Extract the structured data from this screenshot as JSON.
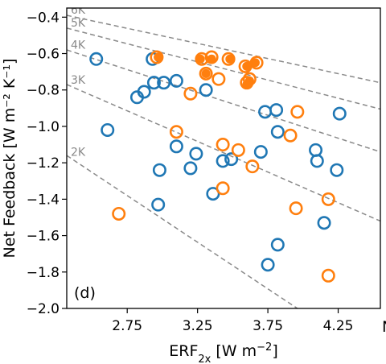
{
  "chart_data": {
    "type": "scatter",
    "panel_label": "(d)",
    "xlabel": "ERF",
    "xlabel_sub": "2x",
    "xlabel_unit": " [W m",
    "xlabel_unit_sup": "−2",
    "xlabel_unit_end": "]",
    "ylabel": "Net Feedback [W m⁻² K⁻¹]",
    "xlim": [
      2.32,
      4.55
    ],
    "ylim": [
      -2.0,
      -0.35
    ],
    "x_ticks": [
      2.75,
      3.25,
      3.75,
      4.25
    ],
    "x_tick_labels": [
      "2.75",
      "3.25",
      "3.75",
      "4.25"
    ],
    "y_ticks": [
      -2.0,
      -1.8,
      -1.6,
      -1.4,
      -1.2,
      -1.0,
      -0.8,
      -0.6,
      -0.4
    ],
    "y_tick_labels": [
      "−2.0",
      "−1.8",
      "−1.6",
      "−1.4",
      "−1.2",
      "−1.0",
      "−0.8",
      "−0.6",
      "−0.4"
    ],
    "edge_text": "N",
    "colors": {
      "blue": "#1f77b4",
      "orange": "#ff7f0e",
      "iso": "#8a8a8a"
    },
    "iso_lines": [
      {
        "label": "6K",
        "x": [
          2.32,
          4.55
        ],
        "y": [
          -0.39,
          -0.76
        ]
      },
      {
        "label": "5K",
        "x": [
          2.32,
          4.55
        ],
        "y": [
          -0.46,
          -0.905
        ]
      },
      {
        "label": "4K",
        "x": [
          2.32,
          4.55
        ],
        "y": [
          -0.58,
          -1.14
        ]
      },
      {
        "label": "3K",
        "x": [
          2.32,
          4.55
        ],
        "y": [
          -0.77,
          -1.52
        ]
      },
      {
        "label": "2K",
        "x": [
          2.32,
          3.96
        ],
        "y": [
          -1.16,
          -2.0
        ]
      }
    ],
    "series": [
      {
        "color": "blue",
        "filled": false,
        "points": [
          [
            2.53,
            -0.63
          ],
          [
            2.93,
            -0.63
          ],
          [
            2.61,
            -1.02
          ],
          [
            2.82,
            -0.84
          ],
          [
            2.87,
            -0.81
          ],
          [
            2.94,
            -0.76
          ],
          [
            3.01,
            -0.76
          ],
          [
            3.1,
            -0.75
          ],
          [
            3.31,
            -0.8
          ],
          [
            3.1,
            -1.11
          ],
          [
            2.98,
            -1.24
          ],
          [
            3.2,
            -1.23
          ],
          [
            3.24,
            -1.15
          ],
          [
            3.43,
            -1.19
          ],
          [
            3.49,
            -1.18
          ],
          [
            3.36,
            -1.37
          ],
          [
            2.97,
            -1.43
          ],
          [
            3.7,
            -1.14
          ],
          [
            3.73,
            -0.92
          ],
          [
            3.81,
            -0.91
          ],
          [
            3.82,
            -1.03
          ],
          [
            4.09,
            -1.13
          ],
          [
            4.1,
            -1.19
          ],
          [
            4.24,
            -1.24
          ],
          [
            4.26,
            -0.93
          ],
          [
            4.15,
            -1.53
          ],
          [
            3.82,
            -1.65
          ],
          [
            3.75,
            -1.76
          ]
        ]
      },
      {
        "color": "orange",
        "filled": false,
        "points": [
          [
            2.96,
            -0.62
          ],
          [
            3.28,
            -0.63
          ],
          [
            3.35,
            -0.62
          ],
          [
            3.47,
            -0.63
          ],
          [
            3.59,
            -0.67
          ],
          [
            3.67,
            -0.65
          ],
          [
            3.31,
            -0.71
          ],
          [
            3.62,
            -0.74
          ],
          [
            3.6,
            -0.76
          ],
          [
            3.4,
            -0.74
          ],
          [
            3.2,
            -0.82
          ],
          [
            3.1,
            -1.03
          ],
          [
            3.43,
            -1.1
          ],
          [
            3.54,
            -1.13
          ],
          [
            3.64,
            -1.22
          ],
          [
            3.91,
            -1.05
          ],
          [
            3.96,
            -0.92
          ],
          [
            3.43,
            -1.34
          ],
          [
            3.95,
            -1.45
          ],
          [
            4.18,
            -1.4
          ],
          [
            2.69,
            -1.48
          ],
          [
            4.18,
            -1.82
          ]
        ]
      },
      {
        "color": "orange",
        "filled": true,
        "points": [
          [
            2.97,
            -0.62
          ],
          [
            3.27,
            -0.63
          ],
          [
            3.35,
            -0.63
          ],
          [
            3.48,
            -0.63
          ],
          [
            3.6,
            -0.67
          ],
          [
            3.66,
            -0.65
          ],
          [
            3.31,
            -0.71
          ],
          [
            3.62,
            -0.75
          ],
          [
            3.6,
            -0.77
          ]
        ]
      }
    ]
  }
}
